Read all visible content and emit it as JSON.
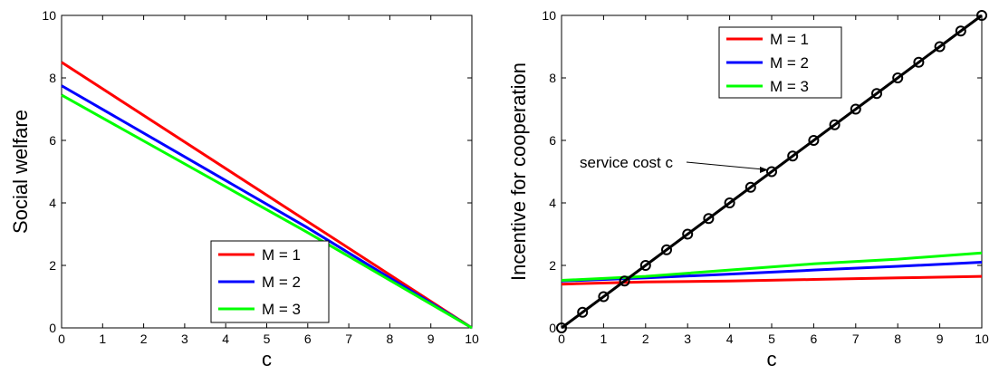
{
  "chart_data": [
    {
      "type": "line",
      "title": "",
      "xlabel": "c",
      "ylabel": "Social welfare",
      "xlim": [
        0,
        10
      ],
      "ylim": [
        0,
        10
      ],
      "xticks": [
        "0",
        "1",
        "2",
        "3",
        "4",
        "5",
        "6",
        "7",
        "8",
        "9",
        "10"
      ],
      "yticks": [
        "0",
        "2",
        "4",
        "6",
        "8",
        "10"
      ],
      "grid": false,
      "legend_position": "bottom-center",
      "series": [
        {
          "name": "M = 1",
          "color": "#ff0000",
          "x": [
            0,
            6,
            10
          ],
          "y": [
            8.5,
            3.4,
            0.0
          ]
        },
        {
          "name": "M = 2",
          "color": "#0000ff",
          "x": [
            0,
            6,
            10
          ],
          "y": [
            7.75,
            3.2,
            0.0
          ]
        },
        {
          "name": "M = 3",
          "color": "#00ff00",
          "x": [
            0,
            6,
            10
          ],
          "y": [
            7.45,
            3.05,
            0.0
          ]
        }
      ]
    },
    {
      "type": "line",
      "title": "",
      "xlabel": "c",
      "ylabel": "Incentive for cooperation",
      "xlim": [
        0,
        10
      ],
      "ylim": [
        0,
        10
      ],
      "xticks": [
        "0",
        "1",
        "2",
        "3",
        "4",
        "5",
        "6",
        "7",
        "8",
        "9",
        "10"
      ],
      "yticks": [
        "0",
        "2",
        "4",
        "6",
        "8",
        "10"
      ],
      "grid": false,
      "legend_position": "top-left",
      "annotation": {
        "text": "service cost c",
        "points_to": [
          5,
          5
        ]
      },
      "series": [
        {
          "name": "M = 1",
          "color": "#ff0000",
          "x": [
            0,
            2,
            4,
            6,
            8,
            10
          ],
          "y": [
            1.4,
            1.47,
            1.5,
            1.55,
            1.6,
            1.65
          ]
        },
        {
          "name": "M = 2",
          "color": "#0000ff",
          "x": [
            0,
            2,
            4,
            6,
            8,
            10
          ],
          "y": [
            1.5,
            1.6,
            1.72,
            1.85,
            1.97,
            2.1
          ]
        },
        {
          "name": "M = 3",
          "color": "#00ff00",
          "x": [
            0,
            2,
            4,
            6,
            8,
            10
          ],
          "y": [
            1.52,
            1.65,
            1.85,
            2.05,
            2.2,
            2.4
          ]
        },
        {
          "name": "",
          "color": "#000000",
          "marker": "circle",
          "x": [
            0,
            0.5,
            1,
            1.5,
            2,
            2.5,
            3,
            3.5,
            4,
            4.5,
            5,
            5.5,
            6,
            6.5,
            7,
            7.5,
            8,
            8.5,
            9,
            9.5,
            10
          ],
          "y": [
            0,
            0.5,
            1,
            1.5,
            2,
            2.5,
            3,
            3.5,
            4,
            4.5,
            5,
            5.5,
            6,
            6.5,
            7,
            7.5,
            8,
            8.5,
            9,
            9.5,
            10
          ]
        }
      ]
    }
  ]
}
